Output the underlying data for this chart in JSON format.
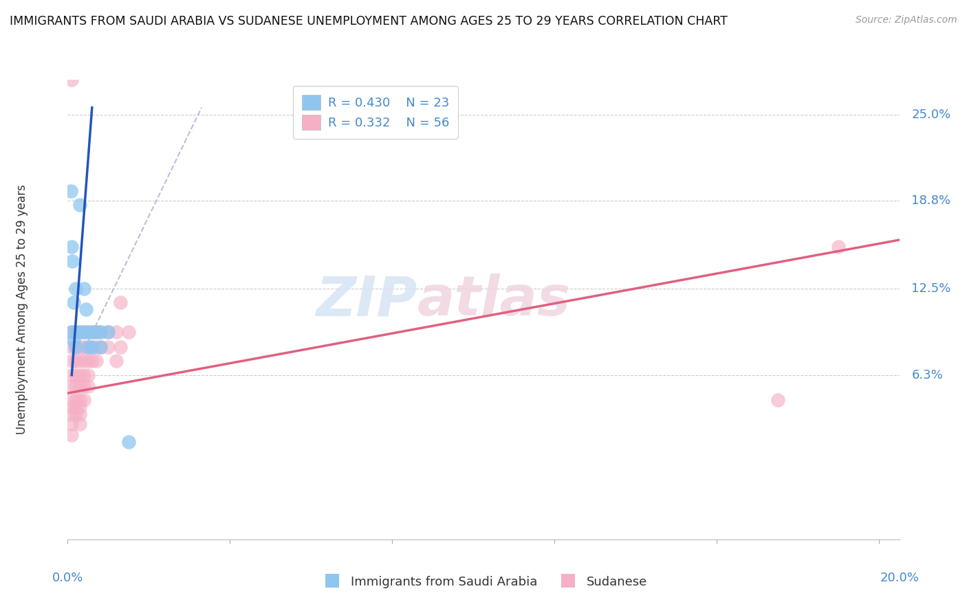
{
  "title": "IMMIGRANTS FROM SAUDI ARABIA VS SUDANESE UNEMPLOYMENT AMONG AGES 25 TO 29 YEARS CORRELATION CHART",
  "source": "Source: ZipAtlas.com",
  "ylabel": "Unemployment Among Ages 25 to 29 years",
  "ytick_labels": [
    "25.0%",
    "18.8%",
    "12.5%",
    "6.3%"
  ],
  "ytick_values": [
    0.25,
    0.188,
    0.125,
    0.063
  ],
  "xtick_positions": [
    0.0,
    0.04,
    0.08,
    0.12,
    0.16,
    0.2
  ],
  "xlim": [
    0.0,
    0.205
  ],
  "ylim": [
    -0.055,
    0.275
  ],
  "legend_r1": "R = 0.430",
  "legend_n1": "N = 23",
  "legend_r2": "R = 0.332",
  "legend_n2": "N = 56",
  "color_blue": "#8ec6f0",
  "color_pink": "#f5b0c5",
  "color_blue_line": "#2255bb",
  "color_pink_line": "#e06080",
  "color_diagonal": "#b0b8d8",
  "watermark_zip": "ZIP",
  "watermark_atlas": "atlas",
  "legend_label1": "Immigrants from Saudi Arabia",
  "legend_label2": "Sudanese",
  "saudi_points": [
    [
      0.0008,
      0.195
    ],
    [
      0.001,
      0.155
    ],
    [
      0.0012,
      0.145
    ],
    [
      0.0015,
      0.115
    ],
    [
      0.001,
      0.094
    ],
    [
      0.0015,
      0.088
    ],
    [
      0.002,
      0.125
    ],
    [
      0.002,
      0.094
    ],
    [
      0.002,
      0.083
    ],
    [
      0.003,
      0.185
    ],
    [
      0.003,
      0.094
    ],
    [
      0.004,
      0.125
    ],
    [
      0.004,
      0.094
    ],
    [
      0.0045,
      0.11
    ],
    [
      0.005,
      0.094
    ],
    [
      0.005,
      0.083
    ],
    [
      0.006,
      0.094
    ],
    [
      0.006,
      0.083
    ],
    [
      0.007,
      0.094
    ],
    [
      0.008,
      0.094
    ],
    [
      0.008,
      0.083
    ],
    [
      0.01,
      0.094
    ],
    [
      0.015,
      0.015
    ]
  ],
  "sudanese_points": [
    [
      0.001,
      0.275
    ],
    [
      0.001,
      0.094
    ],
    [
      0.001,
      0.083
    ],
    [
      0.001,
      0.073
    ],
    [
      0.001,
      0.063
    ],
    [
      0.001,
      0.055
    ],
    [
      0.001,
      0.045
    ],
    [
      0.001,
      0.04
    ],
    [
      0.001,
      0.035
    ],
    [
      0.001,
      0.028
    ],
    [
      0.001,
      0.02
    ],
    [
      0.002,
      0.094
    ],
    [
      0.002,
      0.083
    ],
    [
      0.002,
      0.073
    ],
    [
      0.002,
      0.063
    ],
    [
      0.002,
      0.055
    ],
    [
      0.002,
      0.045
    ],
    [
      0.002,
      0.04
    ],
    [
      0.002,
      0.035
    ],
    [
      0.003,
      0.094
    ],
    [
      0.003,
      0.083
    ],
    [
      0.003,
      0.073
    ],
    [
      0.003,
      0.063
    ],
    [
      0.003,
      0.055
    ],
    [
      0.003,
      0.045
    ],
    [
      0.003,
      0.04
    ],
    [
      0.003,
      0.035
    ],
    [
      0.003,
      0.028
    ],
    [
      0.004,
      0.094
    ],
    [
      0.004,
      0.083
    ],
    [
      0.004,
      0.073
    ],
    [
      0.004,
      0.063
    ],
    [
      0.004,
      0.055
    ],
    [
      0.004,
      0.045
    ],
    [
      0.005,
      0.094
    ],
    [
      0.005,
      0.083
    ],
    [
      0.005,
      0.073
    ],
    [
      0.005,
      0.063
    ],
    [
      0.005,
      0.055
    ],
    [
      0.006,
      0.094
    ],
    [
      0.006,
      0.083
    ],
    [
      0.006,
      0.073
    ],
    [
      0.007,
      0.094
    ],
    [
      0.007,
      0.083
    ],
    [
      0.007,
      0.073
    ],
    [
      0.008,
      0.094
    ],
    [
      0.008,
      0.083
    ],
    [
      0.01,
      0.094
    ],
    [
      0.01,
      0.083
    ],
    [
      0.012,
      0.094
    ],
    [
      0.012,
      0.073
    ],
    [
      0.013,
      0.115
    ],
    [
      0.013,
      0.083
    ],
    [
      0.015,
      0.094
    ],
    [
      0.175,
      0.045
    ],
    [
      0.19,
      0.155
    ]
  ],
  "blue_line": [
    [
      0.001,
      0.063
    ],
    [
      0.006,
      0.255
    ]
  ],
  "pink_line": [
    [
      0.0,
      0.05
    ],
    [
      0.205,
      0.16
    ]
  ]
}
